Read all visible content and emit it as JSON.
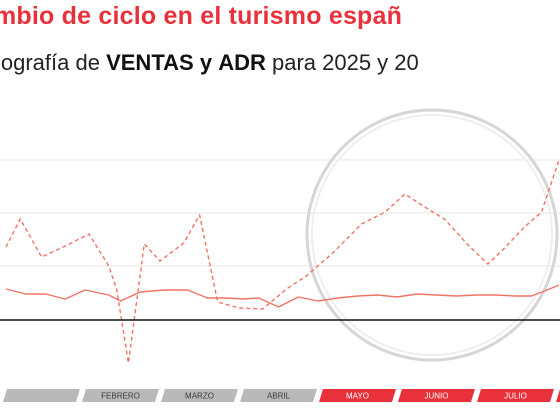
{
  "title": "mbio de ciclo en el turismo españ",
  "subtitle": {
    "pre": "iografía de ",
    "bold1": "VENTAS",
    "mid1": " ",
    "bold2": "y",
    "mid2": " ",
    "bold3": "ADR",
    "post": " para 2025 y 20"
  },
  "colors": {
    "title": "#e8313b",
    "line": "#f07367",
    "baseline": "#111111",
    "grid": "#e6e6e6",
    "month_band_past": "#b9b9b9",
    "month_band_future": "#e8313b",
    "magnifier": "#d6d6d6"
  },
  "chart_data": {
    "type": "line",
    "title": "",
    "xlabel": "",
    "ylabel": "",
    "grid": true,
    "legend": "none",
    "ylim": [
      0,
      180
    ],
    "baseline_value": 0,
    "months": [
      {
        "label": "",
        "highlight": false
      },
      {
        "label": "FEBRERO",
        "highlight": false
      },
      {
        "label": "MARZO",
        "highlight": false
      },
      {
        "label": "ABRIL",
        "highlight": false
      },
      {
        "label": "MAYO",
        "highlight": true
      },
      {
        "label": "JUNIO",
        "highlight": true
      },
      {
        "label": "JULIO",
        "highlight": true
      },
      {
        "label": "",
        "highlight": true
      }
    ],
    "series": [
      {
        "style": "dashed",
        "values": [
          [
            0.0,
            73
          ],
          [
            0.18,
            101
          ],
          [
            0.45,
            63
          ],
          [
            0.75,
            74
          ],
          [
            1.05,
            86
          ],
          [
            1.3,
            54
          ],
          [
            1.4,
            31
          ],
          [
            1.55,
            -43
          ],
          [
            1.75,
            76
          ],
          [
            1.95,
            59
          ],
          [
            2.25,
            77
          ],
          [
            2.45,
            105
          ],
          [
            2.68,
            18
          ],
          [
            2.95,
            12
          ],
          [
            3.25,
            11
          ],
          [
            3.55,
            31
          ],
          [
            3.8,
            44
          ],
          [
            4.15,
            68
          ],
          [
            4.5,
            96
          ],
          [
            4.8,
            108
          ],
          [
            5.05,
            126
          ],
          [
            5.3,
            113
          ],
          [
            5.55,
            101
          ],
          [
            5.85,
            75
          ],
          [
            6.1,
            56
          ],
          [
            6.3,
            71
          ],
          [
            6.55,
            92
          ],
          [
            6.78,
            108
          ],
          [
            7.0,
            160
          ]
        ]
      },
      {
        "style": "solid",
        "values": [
          [
            0.0,
            31
          ],
          [
            0.25,
            26
          ],
          [
            0.5,
            26
          ],
          [
            0.75,
            21
          ],
          [
            1.0,
            30
          ],
          [
            1.3,
            25
          ],
          [
            1.45,
            19
          ],
          [
            1.7,
            28
          ],
          [
            2.0,
            30
          ],
          [
            2.3,
            30
          ],
          [
            2.55,
            22
          ],
          [
            2.8,
            22
          ],
          [
            3.0,
            21
          ],
          [
            3.2,
            22
          ],
          [
            3.45,
            13
          ],
          [
            3.7,
            23
          ],
          [
            3.95,
            19
          ],
          [
            4.2,
            22
          ],
          [
            4.45,
            24
          ],
          [
            4.7,
            25
          ],
          [
            4.95,
            23
          ],
          [
            5.2,
            26
          ],
          [
            5.45,
            25
          ],
          [
            5.7,
            24
          ],
          [
            5.95,
            25
          ],
          [
            6.2,
            25
          ],
          [
            6.45,
            24
          ],
          [
            6.65,
            24
          ],
          [
            6.85,
            30
          ],
          [
            7.0,
            35
          ]
        ]
      }
    ]
  }
}
